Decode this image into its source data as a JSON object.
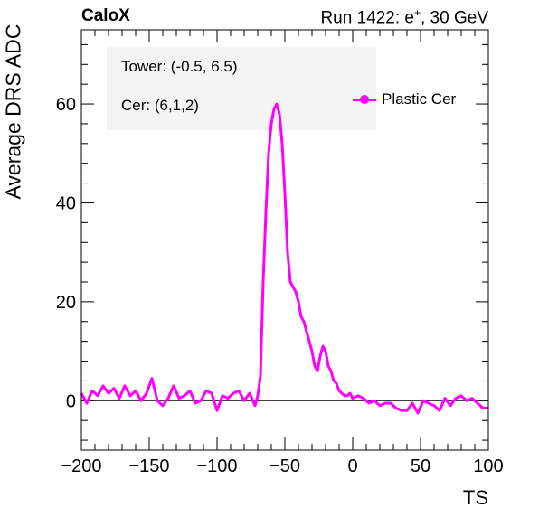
{
  "header": {
    "left_label": "CaloX",
    "right_label_prefix": "Run 1422: e",
    "right_label_sup": "+",
    "right_label_suffix": ", 30 GeV"
  },
  "annotations": {
    "tower": "Tower: (-0.5, 6.5)",
    "cer": "Cer: (6,1,2)"
  },
  "colors": {
    "series": "#ff00ff",
    "axis": "#000000",
    "annotation_box": "#f4f4f4"
  },
  "chart_data": {
    "type": "line",
    "title": "",
    "xlabel": "TS",
    "ylabel": "Average DRS ADC",
    "xlim": [
      -200,
      100
    ],
    "ylim": [
      -10,
      75
    ],
    "xticks": [
      -200,
      -150,
      -100,
      -50,
      0,
      50,
      100
    ],
    "xtick_labels": [
      "−200",
      "−150",
      "−100",
      "−50",
      "0",
      "50",
      "100"
    ],
    "yticks": [
      0,
      20,
      40,
      60
    ],
    "ytick_labels": [
      "0",
      "20",
      "40",
      "60"
    ],
    "reference_line_y": 0,
    "grid": false,
    "legend_position": "top-right",
    "series": [
      {
        "name": "Plastic Cer",
        "color": "#ff00ff",
        "x": [
          -200,
          -196,
          -192,
          -188,
          -184,
          -180,
          -176,
          -172,
          -168,
          -164,
          -160,
          -156,
          -152,
          -148,
          -144,
          -140,
          -136,
          -132,
          -128,
          -124,
          -120,
          -116,
          -112,
          -108,
          -104,
          -100,
          -96,
          -92,
          -88,
          -84,
          -80,
          -76,
          -72,
          -70,
          -68,
          -66,
          -64,
          -62,
          -60,
          -58,
          -56,
          -55,
          -54,
          -53,
          -52,
          -50,
          -48,
          -46,
          -44,
          -42,
          -40,
          -38,
          -36,
          -34,
          -32,
          -30,
          -28,
          -26,
          -24,
          -22,
          -20,
          -18,
          -16,
          -14,
          -12,
          -10,
          -8,
          -6,
          -4,
          -2,
          0,
          4,
          8,
          12,
          16,
          20,
          24,
          28,
          32,
          36,
          40,
          44,
          48,
          52,
          56,
          60,
          64,
          68,
          72,
          76,
          80,
          84,
          88,
          92,
          96,
          100
        ],
        "y": [
          1.5,
          -0.5,
          2.0,
          1.0,
          3.0,
          1.5,
          2.5,
          0.5,
          3.0,
          1.0,
          2.0,
          0.0,
          1.5,
          4.5,
          0.0,
          -1.0,
          0.5,
          3.0,
          0.5,
          1.0,
          2.0,
          -0.5,
          0.0,
          2.0,
          1.5,
          -2.0,
          1.0,
          0.5,
          1.5,
          2.0,
          0.0,
          1.5,
          -1.0,
          1.0,
          5.0,
          24.0,
          38.0,
          50.0,
          56.0,
          59.0,
          60.0,
          59.0,
          58.0,
          55.0,
          52.0,
          42.0,
          30.0,
          24.0,
          23.0,
          22.0,
          20.0,
          17.0,
          16.0,
          14.0,
          12.0,
          10.0,
          7.0,
          6.0,
          9.0,
          11.0,
          10.0,
          7.0,
          6.0,
          4.0,
          3.5,
          2.0,
          1.5,
          1.0,
          1.0,
          1.5,
          0.5,
          1.0,
          0.5,
          -0.5,
          0.0,
          -1.0,
          -0.5,
          -0.5,
          -1.5,
          -2.0,
          -2.0,
          -0.5,
          -2.5,
          0.0,
          -0.5,
          -1.0,
          -2.0,
          0.5,
          -1.0,
          0.5,
          1.0,
          0.0,
          0.5,
          -0.5,
          -1.5,
          -1.5
        ]
      }
    ]
  }
}
